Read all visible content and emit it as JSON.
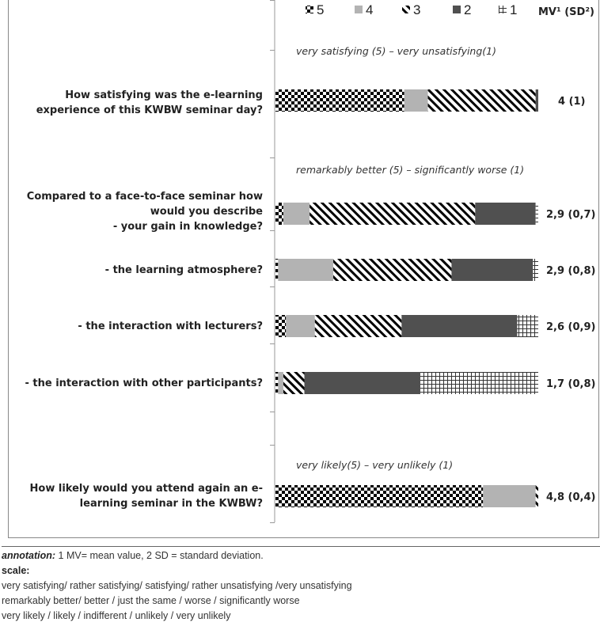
{
  "chart_data": {
    "type": "bar",
    "orientation": "horizontal-stacked-percent",
    "legend": {
      "position": "top",
      "entries": [
        "5",
        "4",
        "3",
        "2",
        "1"
      ],
      "mv_header": "MV¹ (SD²)"
    },
    "series_colors": {
      "5": "checkerboard",
      "4": "#b3b3b3",
      "3": "diagonal-stripes",
      "2": "#505050",
      "1": "grid"
    },
    "xlim": [
      0,
      100
    ],
    "groups": [
      {
        "scale_label": "very satisfying (5) – very unsatisfying(1)",
        "items": [
          {
            "question": [
              "How satisfying was the e-learning",
              "experience of this KWBW seminar day?"
            ],
            "values": {
              "5": 49,
              "4": 9,
              "3": 41,
              "2": 1,
              "1": 0
            },
            "mv": "4 (1)"
          }
        ]
      },
      {
        "scale_label": "remarkably better (5) – significantly worse (1)",
        "items": [
          {
            "question": [
              "Compared to a face-to-face seminar how",
              "would you describe",
              "- your gain in knowledge?"
            ],
            "values": {
              "5": 3,
              "4": 10,
              "3": 63,
              "2": 23,
              "1": 1
            },
            "mv": "2,9 (0,7)"
          },
          {
            "question": [
              "- the learning atmosphere?"
            ],
            "values": {
              "5": 1,
              "4": 21,
              "3": 45,
              "2": 31,
              "1": 2
            },
            "mv": "2,9 (0,8)"
          },
          {
            "question": [
              "- the interaction with lecturers?"
            ],
            "values": {
              "5": 4,
              "4": 11,
              "3": 33,
              "2": 44,
              "1": 8
            },
            "mv": "2,6 (0,9)"
          },
          {
            "question": [
              "- the interaction with other participants?"
            ],
            "values": {
              "5": 1,
              "4": 2,
              "3": 8,
              "2": 44,
              "1": 45
            },
            "mv": "1,7 (0,8)"
          }
        ]
      },
      {
        "scale_label": "very likely(5) – very unlikely (1)",
        "items": [
          {
            "question": [
              "How likely would you attend again an e-",
              "learning seminar in the KWBW?"
            ],
            "values": {
              "5": 79,
              "4": 20,
              "3": 1,
              "2": 0,
              "1": 0
            },
            "mv": "4,8 (0,4)"
          }
        ]
      }
    ]
  },
  "footer": {
    "annotation_label": "annotation:",
    "annotation_text": " 1 MV= mean value, 2 SD = standard deviation.",
    "scale_label": "scale:",
    "lines": [
      "very satisfying/ rather satisfying/ satisfying/ rather unsatisfying /very unsatisfying",
      "remarkably better/ better / just the same / worse / significantly worse",
      "very likely / likely / indifferent / unlikely / very unlikely"
    ]
  }
}
